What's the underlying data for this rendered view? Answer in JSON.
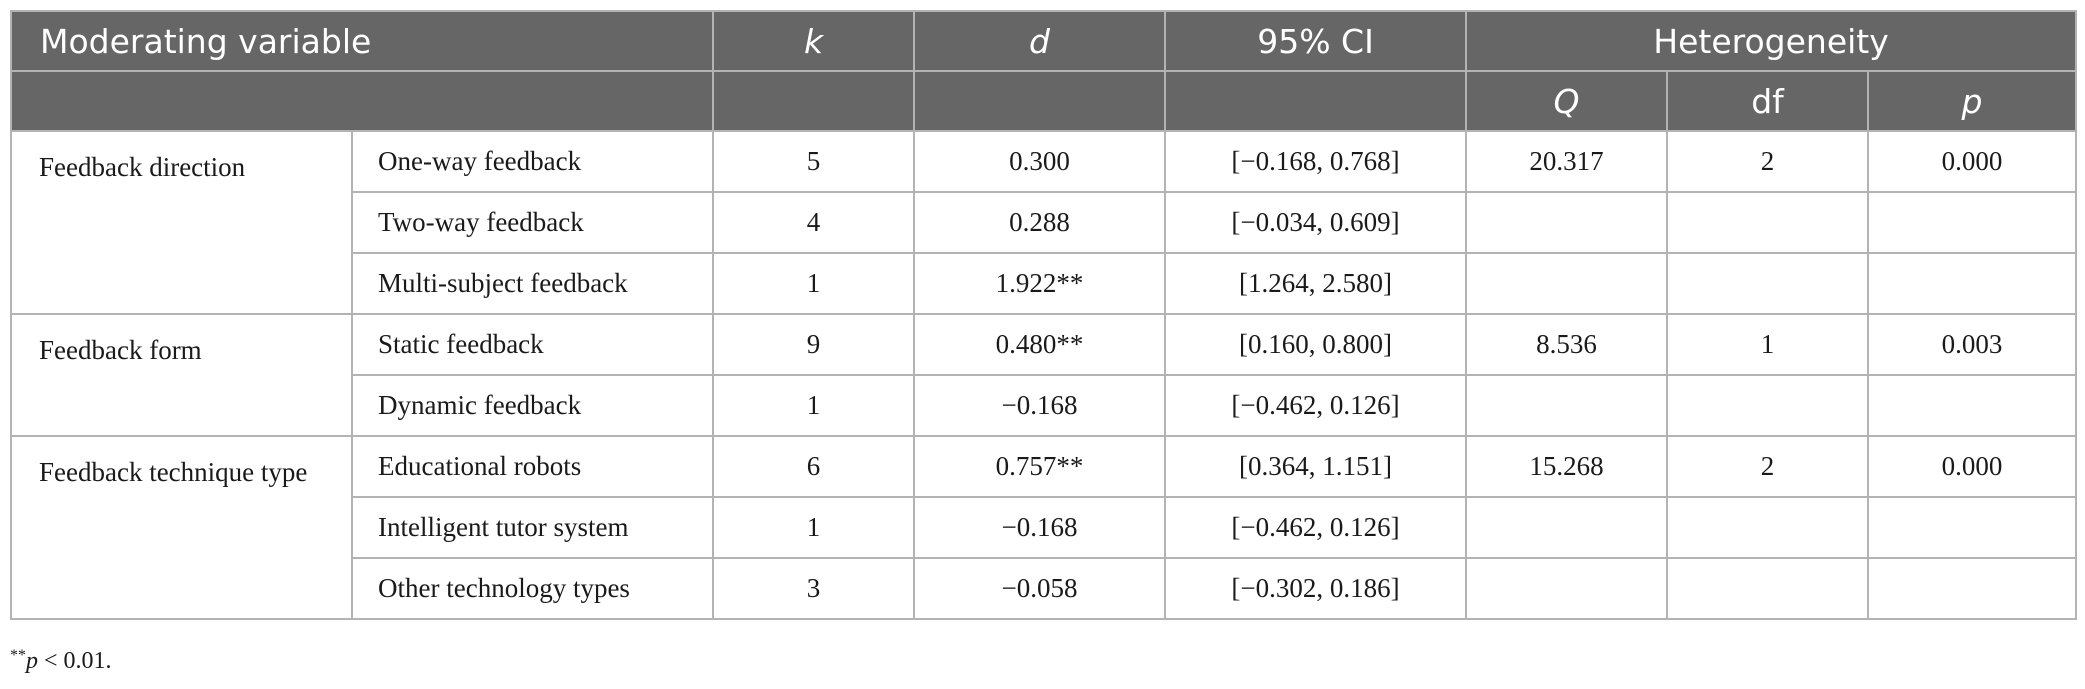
{
  "table": {
    "headers": {
      "moderating_variable": "Moderating variable",
      "k": "k",
      "d": "d",
      "ci": "95% CI",
      "heterogeneity": "Heterogeneity",
      "q": "Q",
      "df": "df",
      "p": "p"
    },
    "groups": [
      {
        "name": "Feedback direction",
        "rows": [
          {
            "level": "One-way feedback",
            "k": "5",
            "d": "0.300",
            "ci": "[−0.168, 0.768]",
            "q": "20.317",
            "df": "2",
            "p": "0.000"
          },
          {
            "level": "Two-way feedback",
            "k": "4",
            "d": "0.288",
            "ci": "[−0.034, 0.609]",
            "q": "",
            "df": "",
            "p": ""
          },
          {
            "level": "Multi-subject feedback",
            "k": "1",
            "d": "1.922**",
            "ci": "[1.264, 2.580]",
            "q": "",
            "df": "",
            "p": ""
          }
        ]
      },
      {
        "name": "Feedback form",
        "rows": [
          {
            "level": "Static feedback",
            "k": "9",
            "d": "0.480**",
            "ci": "[0.160, 0.800]",
            "q": "8.536",
            "df": "1",
            "p": "0.003"
          },
          {
            "level": "Dynamic feedback",
            "k": "1",
            "d": "−0.168",
            "ci": "[−0.462, 0.126]",
            "q": "",
            "df": "",
            "p": ""
          }
        ]
      },
      {
        "name": "Feedback technique type",
        "rows": [
          {
            "level": "Educational robots",
            "k": "6",
            "d": "0.757**",
            "ci": "[0.364, 1.151]",
            "q": "15.268",
            "df": "2",
            "p": "0.000"
          },
          {
            "level": "Intelligent tutor system",
            "k": "1",
            "d": "−0.168",
            "ci": "[−0.462, 0.126]",
            "q": "",
            "df": "",
            "p": ""
          },
          {
            "level": "Other technology types",
            "k": "3",
            "d": "−0.058",
            "ci": "[−0.302, 0.186]",
            "q": "",
            "df": "",
            "p": ""
          }
        ]
      }
    ]
  },
  "footnote": {
    "stars": "**",
    "p": "p",
    "condition": " < 0.01."
  }
}
